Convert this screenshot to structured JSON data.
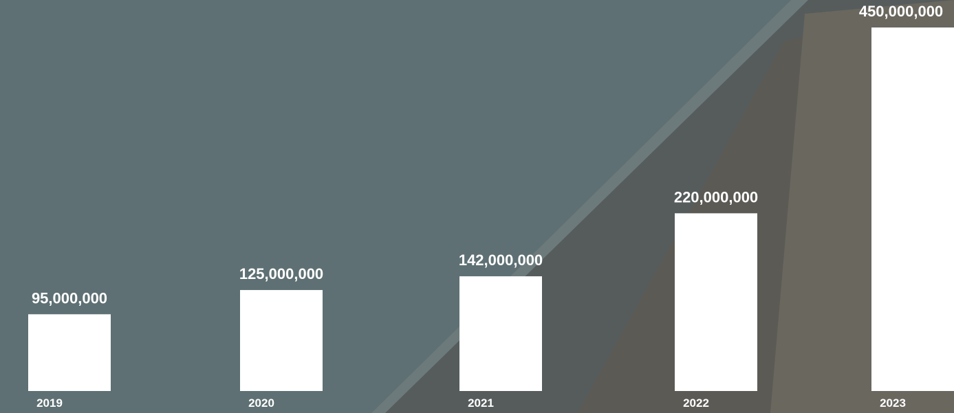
{
  "chart_data": {
    "type": "bar",
    "title": "",
    "xlabel": "",
    "ylabel": "",
    "categories": [
      "2019",
      "2020",
      "2021",
      "2022",
      "2023"
    ],
    "values": [
      95000000,
      125000000,
      142000000,
      220000000,
      450000000
    ],
    "value_labels": [
      "95,000,000",
      "125,000,000",
      "142,000,000",
      "220,000,000",
      "450,000,000"
    ],
    "ylim": [
      0,
      450000000
    ],
    "grid": false,
    "legend": "none",
    "bar_color": "#ffffff",
    "label_color": "#ffffff",
    "background_color": "#5d6f72"
  }
}
